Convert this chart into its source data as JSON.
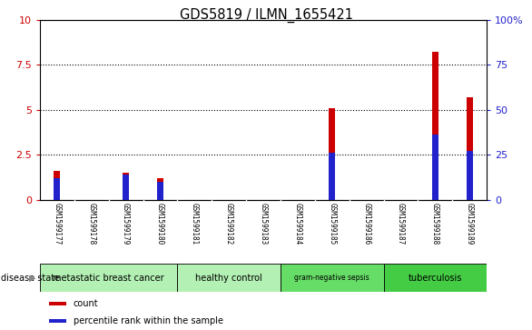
{
  "title": "GDS5819 / ILMN_1655421",
  "samples": [
    "GSM1599177",
    "GSM1599178",
    "GSM1599179",
    "GSM1599180",
    "GSM1599181",
    "GSM1599182",
    "GSM1599183",
    "GSM1599184",
    "GSM1599185",
    "GSM1599186",
    "GSM1599187",
    "GSM1599188",
    "GSM1599189"
  ],
  "count_values": [
    1.6,
    0.0,
    1.5,
    1.2,
    0.0,
    0.0,
    0.0,
    0.0,
    5.1,
    0.0,
    0.0,
    8.2,
    5.7
  ],
  "percentile_values": [
    12,
    0,
    14,
    10,
    0,
    0,
    0,
    0,
    26,
    0,
    0,
    36,
    27
  ],
  "disease_groups": [
    {
      "label": "metastatic breast cancer",
      "start": 0,
      "end": 3,
      "color": "#b3f0b3"
    },
    {
      "label": "healthy control",
      "start": 4,
      "end": 6,
      "color": "#b3f0b3"
    },
    {
      "label": "gram-negative sepsis",
      "start": 7,
      "end": 9,
      "color": "#66dd66"
    },
    {
      "label": "tuberculosis",
      "start": 10,
      "end": 12,
      "color": "#44cc44"
    }
  ],
  "ylim_left": [
    0,
    10
  ],
  "ylim_right": [
    0,
    100
  ],
  "yticks_left": [
    0,
    2.5,
    5.0,
    7.5,
    10
  ],
  "ytick_labels_left": [
    "0",
    "2.5",
    "5",
    "7.5",
    "10"
  ],
  "yticks_right": [
    0,
    25,
    50,
    75,
    100
  ],
  "ytick_labels_right": [
    "0",
    "25",
    "50",
    "75",
    "100%"
  ],
  "bar_color_red": "#cc0000",
  "bar_color_blue": "#2222cc",
  "bg_color": "#d8d8d8",
  "plot_bg": "#ffffff",
  "left_tick_color": "#cc0000",
  "right_tick_color": "#2222cc",
  "bar_width": 0.18
}
